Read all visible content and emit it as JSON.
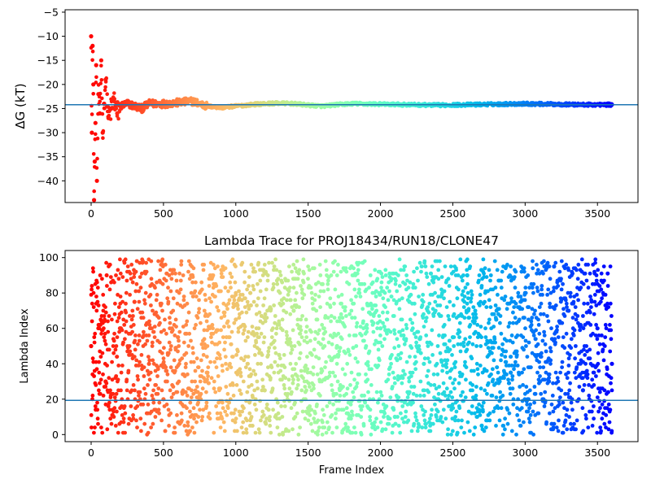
{
  "chart_data": [
    {
      "type": "scatter",
      "title": "",
      "xlabel": "",
      "ylabel": "ΔG (kT)",
      "xlim": [
        -180,
        3780
      ],
      "ylim": [
        -44.5,
        -4.5
      ],
      "xticks": [
        "0",
        "500",
        "1000",
        "1500",
        "2000",
        "2500",
        "3000",
        "3500"
      ],
      "yticks": [
        "-5",
        "-10",
        "-15",
        "-20",
        "-25",
        "-30",
        "-35",
        "-40"
      ],
      "grid": false,
      "colormap": "rainbow (red at frame 0 → violet at frame 3600)",
      "n_frames": 3600,
      "hline": {
        "y": -24.2,
        "color": "#1f77b4"
      },
      "series": [
        {
          "x": [
            0,
            5,
            10,
            15,
            20,
            25,
            30,
            35,
            40,
            50,
            60,
            70,
            80,
            90,
            100,
            120,
            140,
            160,
            180,
            200,
            250,
            300,
            350,
            400,
            500,
            600,
            700,
            800,
            900,
            1000,
            1100,
            1200,
            1300,
            1400,
            1500,
            1600,
            1700,
            1800,
            2000,
            2200,
            2400,
            2600,
            2800,
            3000,
            3200,
            3400,
            3600
          ],
          "y": [
            -10,
            -30,
            -12,
            -20,
            -44,
            -36,
            -28,
            -16,
            -40,
            -22,
            -26,
            -15,
            -30,
            -24,
            -19,
            -27,
            -25,
            -23,
            -26,
            -24.5,
            -24,
            -24.5,
            -25,
            -24,
            -24,
            -23.8,
            -23.5,
            -24.5,
            -24.8,
            -24.5,
            -24.2,
            -24,
            -23.9,
            -24,
            -24.3,
            -24.5,
            -24.2,
            -24,
            -24.1,
            -24.2,
            -24.3,
            -24.2,
            -24.1,
            -24,
            -24.1,
            -24.2,
            -24.2
          ]
        }
      ]
    },
    {
      "type": "scatter",
      "title": "Lambda Trace for PROJ18434/RUN18/CLONE47",
      "xlabel": "Frame Index",
      "ylabel": "Lambda Index",
      "xlim": [
        -180,
        3780
      ],
      "ylim": [
        -4,
        104
      ],
      "xticks": [
        "0",
        "500",
        "1000",
        "1500",
        "2000",
        "2500",
        "3000",
        "3500"
      ],
      "yticks": [
        "0",
        "20",
        "40",
        "60",
        "80",
        "100"
      ],
      "grid": false,
      "colormap": "rainbow (red at frame 0 → violet at frame 3600)",
      "n_frames": 3600,
      "hline": {
        "y": 19.3,
        "color": "#1f77b4"
      },
      "series": [
        {
          "x": [
            0,
            100,
            200,
            300,
            400,
            500,
            600,
            700,
            800,
            900,
            1000,
            1100,
            1200,
            1300,
            1400,
            1500,
            1600,
            1700,
            1800,
            1900,
            2000,
            2100,
            2200,
            2300,
            2400,
            2500,
            2600,
            2700,
            2800,
            2900,
            3000,
            3100,
            3200,
            3300,
            3400,
            3500,
            3600
          ],
          "y": [
            50,
            30,
            60,
            75,
            40,
            20,
            55,
            90,
            35,
            10,
            65,
            80,
            25,
            45,
            70,
            15,
            85,
            50,
            95,
            30,
            60,
            10,
            75,
            40,
            20,
            55,
            90,
            5,
            65,
            35,
            80,
            45,
            95,
            70,
            25,
            60,
            40
          ]
        }
      ]
    }
  ]
}
